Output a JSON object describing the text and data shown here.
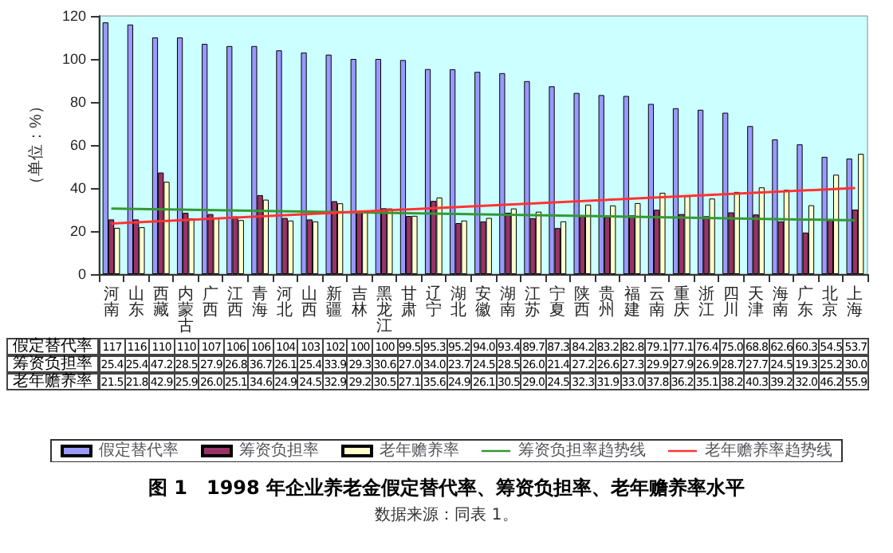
{
  "chart_data": {
    "type": "bar",
    "title": "图 1　1998 年企业养老金假定替代率、筹资负担率、老年赡养率水平",
    "annotations": [
      "数据来源：同表 1。"
    ],
    "ylabel": "（单位：%）",
    "categories": [
      "河南",
      "山东",
      "西藏",
      "内蒙古",
      "广西",
      "江西",
      "青海",
      "河北",
      "山西",
      "新疆",
      "吉林",
      "黑龙江",
      "甘肃",
      "辽宁",
      "湖北",
      "安徽",
      "湖南",
      "江苏",
      "宁夏",
      "陕西",
      "贵州",
      "福建",
      "云南",
      "重庆",
      "浙江",
      "四川",
      "天津",
      "海南",
      "广东",
      "北京",
      "上海"
    ],
    "series": [
      {
        "name": "假定替代率",
        "color": "#9999ff",
        "values": [
          117,
          116,
          110,
          110,
          107,
          106,
          106,
          104,
          103,
          102,
          100,
          100,
          99.5,
          95.3,
          95.2,
          94.0,
          93.4,
          89.7,
          87.3,
          84.2,
          83.2,
          82.8,
          79.1,
          77.1,
          76.4,
          75.0,
          68.8,
          62.6,
          60.3,
          54.5,
          53.7
        ],
        "value_labels": [
          "117",
          "116",
          "110",
          "110",
          "107",
          "106",
          "106",
          "104",
          "103",
          "102",
          "100",
          "100",
          "99.5",
          "95.3",
          "95.2",
          "94.0",
          "93.4",
          "89.7",
          "87.3",
          "84.2",
          "83.2",
          "82.8",
          "79.1",
          "77.1",
          "76.4",
          "75.0",
          "68.8",
          "62.6",
          "60.3",
          "54.5",
          "53.7"
        ]
      },
      {
        "name": "筹资负担率",
        "color": "#993366",
        "values": [
          25.4,
          25.4,
          47.2,
          28.5,
          27.9,
          26.8,
          36.7,
          26.1,
          25.4,
          33.9,
          29.3,
          30.6,
          27.0,
          34.0,
          23.7,
          24.5,
          28.5,
          26.0,
          21.4,
          27.2,
          26.6,
          27.3,
          29.9,
          27.9,
          26.9,
          28.7,
          27.7,
          24.5,
          19.3,
          25.2,
          30.0
        ],
        "value_labels": [
          "25.4",
          "25.4",
          "47.2",
          "28.5",
          "27.9",
          "26.8",
          "36.7",
          "26.1",
          "25.4",
          "33.9",
          "29.3",
          "30.6",
          "27.0",
          "34.0",
          "23.7",
          "24.5",
          "28.5",
          "26.0",
          "21.4",
          "27.2",
          "26.6",
          "27.3",
          "29.9",
          "27.9",
          "26.9",
          "28.7",
          "27.7",
          "24.5",
          "19.3",
          "25.2",
          "30.0"
        ]
      },
      {
        "name": "老年赡养率",
        "color": "#ffffcc",
        "values": [
          21.5,
          21.8,
          42.9,
          25.9,
          26.0,
          25.1,
          34.6,
          24.9,
          24.5,
          32.9,
          29.2,
          30.5,
          27.1,
          35.6,
          24.9,
          26.1,
          30.5,
          29.0,
          24.5,
          32.3,
          31.9,
          33.0,
          37.8,
          36.2,
          35.1,
          38.2,
          40.3,
          39.2,
          32.0,
          46.2,
          55.9
        ],
        "value_labels": [
          "21.5",
          "21.8",
          "42.9",
          "25.9",
          "26.0",
          "25.1",
          "34.6",
          "24.9",
          "24.5",
          "32.9",
          "29.2",
          "30.5",
          "27.1",
          "35.6",
          "24.9",
          "26.1",
          "30.5",
          "29.0",
          "24.5",
          "32.3",
          "31.9",
          "33.0",
          "37.8",
          "36.2",
          "35.1",
          "38.2",
          "40.3",
          "39.2",
          "32.0",
          "46.2",
          "55.9"
        ]
      },
      {
        "name": "筹资负担率趋势线",
        "type": "line",
        "color": "#339933",
        "x": [
          "河南",
          "上海"
        ],
        "values": [
          30.5,
          25.0
        ]
      },
      {
        "name": "老年赡养率趋势线",
        "type": "line",
        "color": "#ff3333",
        "x": [
          "河南",
          "上海"
        ],
        "values": [
          23.5,
          40.0
        ]
      }
    ],
    "ylim": [
      0,
      120
    ],
    "yticks": [
      0,
      20,
      40,
      60,
      80,
      100,
      120
    ],
    "grid": false,
    "legend": "bottom"
  }
}
